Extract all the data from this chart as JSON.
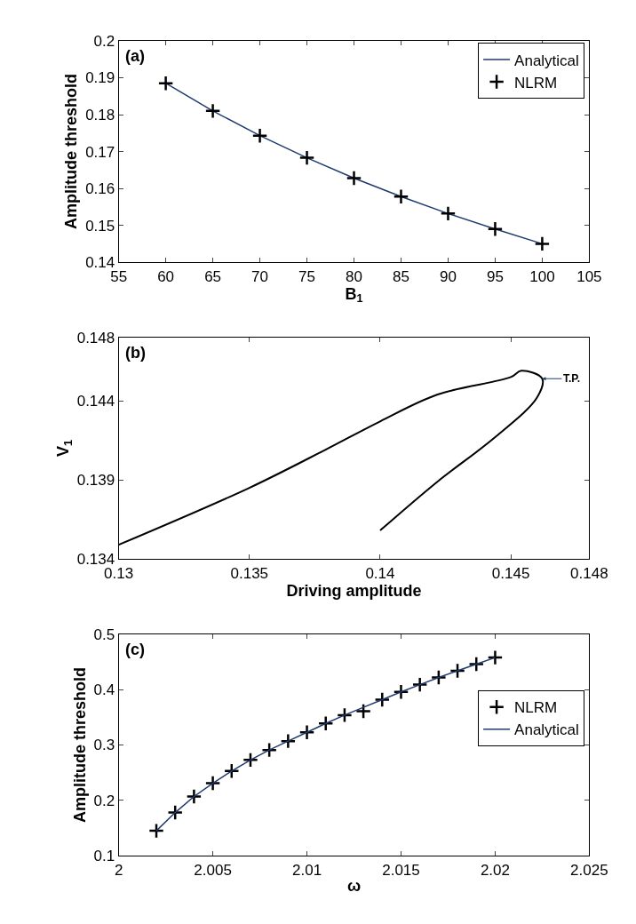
{
  "chart_data": [
    {
      "type": "line",
      "xlabel": "B$_{1}$",
      "ylabel": "Amplitude threshold",
      "annotations": [
        "(a)"
      ],
      "xlim": [
        55,
        105
      ],
      "xticks": [
        55,
        60,
        65,
        70,
        75,
        80,
        85,
        90,
        95,
        100,
        105
      ],
      "ylim": [
        0.14,
        0.2
      ],
      "yticks": [
        0.14,
        0.15,
        0.16,
        0.17,
        0.18,
        0.19,
        0.2
      ],
      "legend": "top right",
      "x": [
        60,
        65,
        70,
        75,
        80,
        85,
        90,
        95,
        100
      ],
      "series": [
        {
          "name": "Analytical",
          "color": "#1f3a6e",
          "marker": "none",
          "line_style": "solid",
          "values": [
            0.1885,
            0.181,
            0.1743,
            0.1683,
            0.1628,
            0.1578,
            0.1532,
            0.149,
            0.145
          ]
        },
        {
          "name": "NLRM",
          "type": "scatter",
          "color": "#000000",
          "marker": "cross",
          "values": [
            0.1885,
            0.181,
            0.1743,
            0.1683,
            0.1628,
            0.1578,
            0.1532,
            0.149,
            0.145
          ]
        }
      ]
    },
    {
      "type": "line",
      "xlabel": "Driving amplitude",
      "ylabel": "V$_{1}$",
      "annotations": [
        {
          "text": "T.P.",
          "x": 0.1462,
          "y": 0.1454
        },
        "(b)"
      ],
      "xlim": [
        0.13,
        0.148
      ],
      "xticks": [
        0.13,
        0.135,
        0.14,
        0.145,
        0.148
      ],
      "ylim": [
        0.134,
        0.148
      ],
      "yticks": [
        0.134,
        0.139,
        0.144,
        0.148
      ],
      "series": [
        {
          "color": "#000000",
          "marker": "none",
          "line_style": "solid",
          "x": [
            0.13,
            0.135,
            0.1379,
            0.14,
            0.1422,
            0.145,
            0.1454,
            0.1462,
            0.146,
            0.1444,
            0.1422,
            0.14
          ],
          "values": [
            0.1349,
            0.1385,
            0.1409,
            0.1427,
            0.1444,
            0.1455,
            0.1459,
            0.1454,
            0.1442,
            0.1417,
            0.1389,
            0.1358
          ]
        }
      ]
    },
    {
      "type": "line",
      "xlabel": "ω",
      "ylabel": "Amplitude threshold",
      "annotations": [
        "(c)"
      ],
      "xlim": [
        2,
        2.025
      ],
      "xticks": [
        2,
        2.005,
        2.01,
        2.015,
        2.02,
        2.025
      ],
      "ylim": [
        0.1,
        0.5
      ],
      "yticks": [
        0.1,
        0.2,
        0.3,
        0.4,
        0.5
      ],
      "legend": "right",
      "x": [
        2.002,
        2.003,
        2.004,
        2.005,
        2.006,
        2.007,
        2.008,
        2.009,
        2.01,
        2.011,
        2.012,
        2.013,
        2.014,
        2.015,
        2.016,
        2.017,
        2.018,
        2.019,
        2.02
      ],
      "series": [
        {
          "name": "NLRM",
          "type": "scatter",
          "color": "#000000",
          "marker": "cross",
          "values": [
            0.145,
            0.178,
            0.207,
            0.231,
            0.253,
            0.273,
            0.291,
            0.307,
            0.323,
            0.339,
            0.354,
            0.361,
            0.382,
            0.396,
            0.409,
            0.422,
            0.434,
            0.446,
            0.458
          ]
        },
        {
          "name": "Analytical",
          "color": "#1f3a6e",
          "marker": "none",
          "line_style": "solid",
          "values": [
            0.145,
            0.178,
            0.207,
            0.231,
            0.253,
            0.273,
            0.291,
            0.307,
            0.323,
            0.339,
            0.354,
            0.368,
            0.382,
            0.396,
            0.409,
            0.422,
            0.434,
            0.446,
            0.458
          ]
        }
      ]
    }
  ]
}
